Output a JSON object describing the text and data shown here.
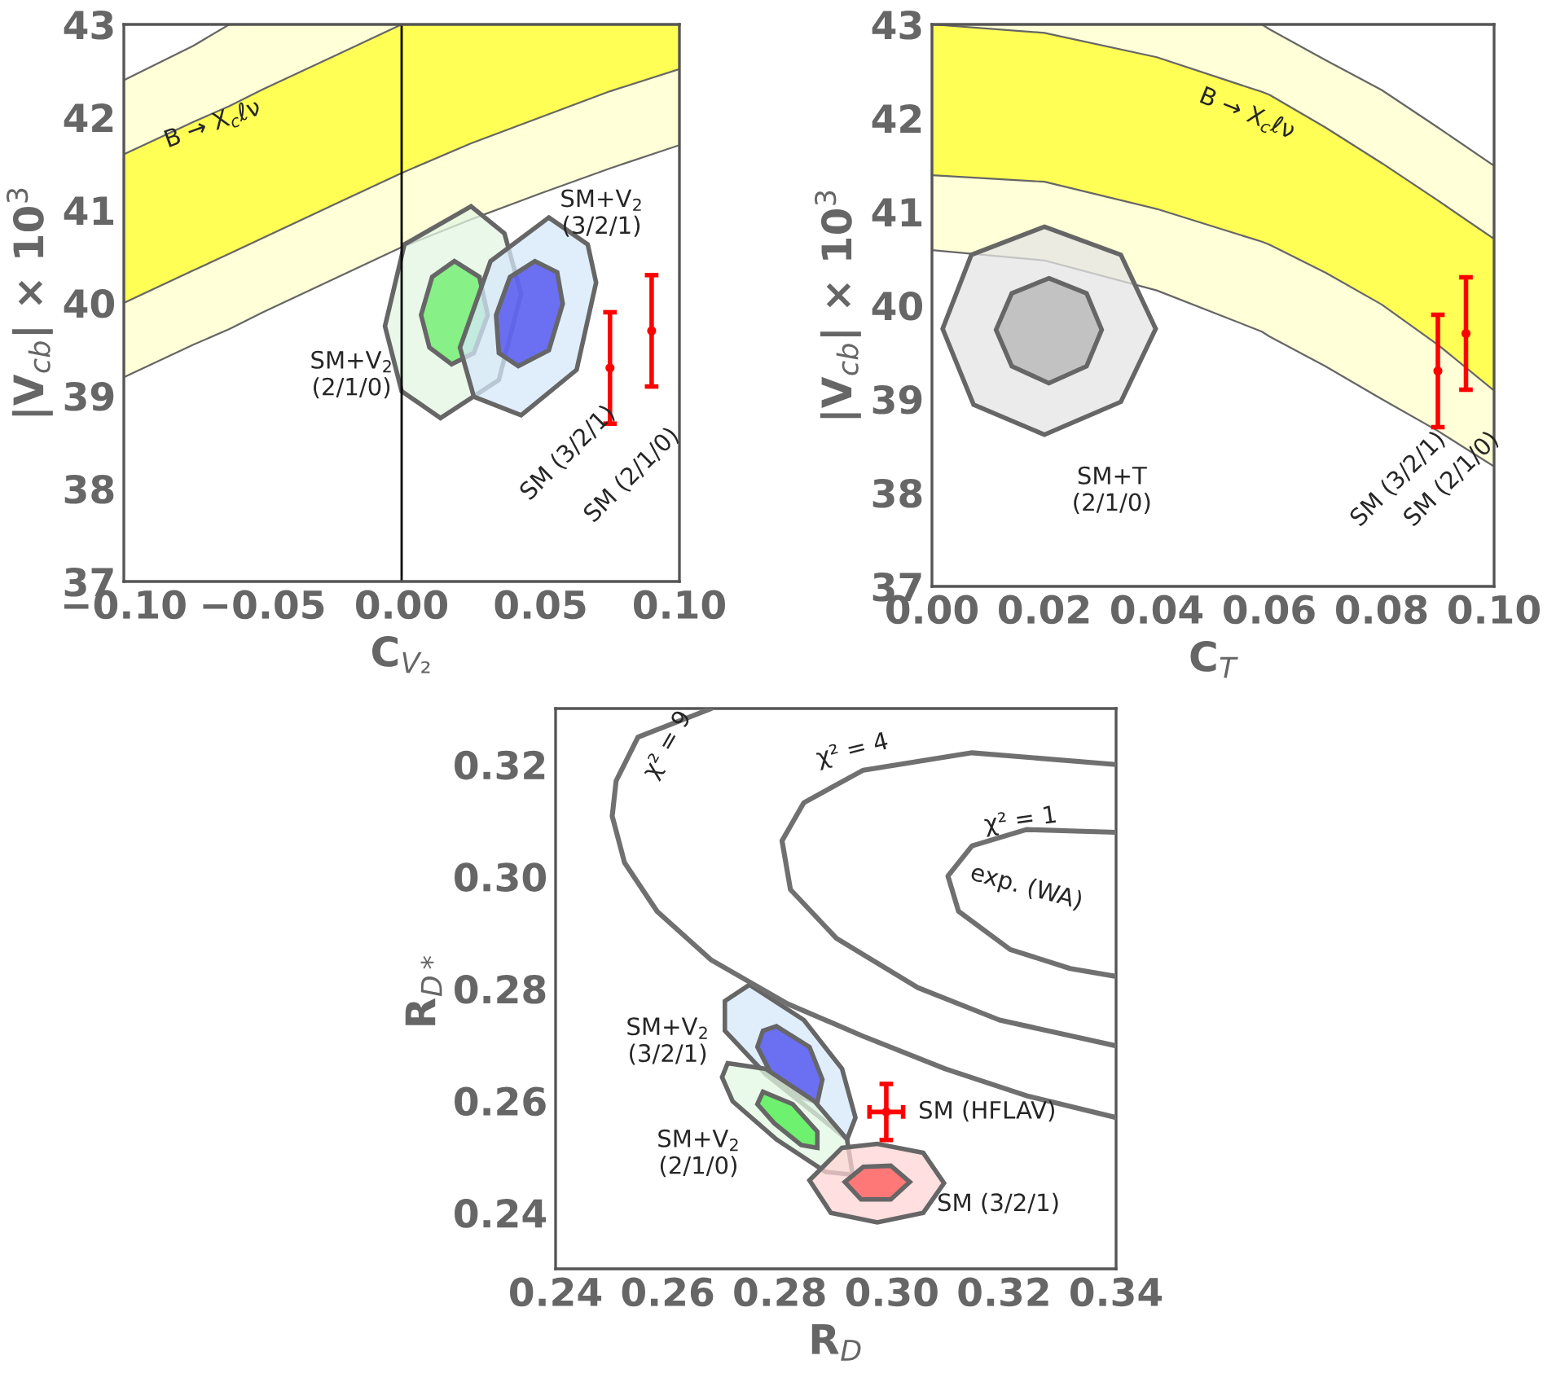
{
  "chart_data": [
    {
      "type": "area",
      "xlabel": "C$_{V₂}$",
      "ylabel": "|V$_{cb}$| × 10$^{3}$",
      "xlim": [
        -0.1,
        0.1
      ],
      "ylim": [
        37,
        43
      ],
      "xticks": [
        {
          "value": -0.1,
          "label": "−0.10"
        },
        {
          "value": -0.05,
          "label": "−0.05"
        },
        {
          "value": 0,
          "label": "0.00"
        },
        {
          "value": 0.05,
          "label": "0.05"
        },
        {
          "value": 0.1,
          "label": "0.10"
        }
      ],
      "yticks": [
        37,
        38,
        39,
        40,
        41,
        42,
        43
      ],
      "grid": false,
      "ref_lines": [
        {
          "axis": "x",
          "value": 0,
          "color": "#000000"
        }
      ],
      "series": [
        {
          "type": "area",
          "color": "#ffffd8",
          "x": [
            -0.1,
            -0.075,
            -0.062,
            -0.05,
            -0.025,
            0,
            0.025,
            0.05,
            0.075,
            0.1
          ],
          "values": [
            null,
            null,
            null,
            null,
            null,
            null,
            null,
            null,
            null,
            null
          ],
          "upper": [
            42.4,
            42.77,
            43,
            43,
            43,
            43,
            43,
            43,
            43,
            43
          ],
          "lower": [
            39.2,
            39.55,
            39.72,
            39.9,
            40.25,
            40.6,
            40.9,
            41.18,
            41.45,
            41.7
          ]
        },
        {
          "type": "area",
          "color": "#ffff55",
          "x": [
            -0.1,
            -0.075,
            -0.062,
            -0.05,
            -0.025,
            0,
            0.025,
            0.05,
            0.075,
            0.1
          ],
          "values": [
            null,
            null,
            null,
            null,
            null,
            null,
            null,
            null,
            null,
            null
          ],
          "upper": [
            41.6,
            41.95,
            42.12,
            42.3,
            42.65,
            43,
            43,
            43,
            43,
            43
          ],
          "lower": [
            40.0,
            40.35,
            40.53,
            40.7,
            41.05,
            41.4,
            41.72,
            42.0,
            42.28,
            42.52
          ]
        },
        {
          "type": "area",
          "color": "#e3f5e3",
          "x": [
            0.025,
            0.037,
            0.043,
            0.035,
            0.014,
            0.0,
            -0.006,
            0.001
          ],
          "values": [
            41.04,
            40.75,
            40.1,
            39.17,
            38.76,
            39.05,
            39.75,
            40.63
          ]
        },
        {
          "type": "area",
          "color": "#66ee66",
          "x": [
            0.019,
            0.028,
            0.031,
            0.026,
            0.018,
            0.01,
            0.007,
            0.011
          ],
          "values": [
            40.45,
            40.28,
            39.87,
            39.46,
            39.34,
            39.52,
            39.87,
            40.28
          ]
        },
        {
          "type": "area",
          "color": "#d6e8fb",
          "x": [
            0.053,
            0.067,
            0.07,
            0.063,
            0.043,
            0.026,
            0.021,
            0.032
          ],
          "values": [
            40.92,
            40.63,
            40.22,
            39.28,
            38.79,
            38.99,
            39.52,
            40.45
          ]
        },
        {
          "type": "area",
          "color": "#4444ee",
          "x": [
            0.048,
            0.056,
            0.058,
            0.053,
            0.042,
            0.035,
            0.034,
            0.039
          ],
          "values": [
            40.45,
            40.33,
            39.99,
            39.49,
            39.32,
            39.46,
            39.87,
            40.28
          ]
        },
        {
          "type": "scatter",
          "color": "#ff0000",
          "marker": "circle",
          "x": [
            0.075,
            0.09
          ],
          "values": [
            39.3,
            39.7
          ],
          "errors": [
            0.6,
            0.6
          ]
        }
      ],
      "annotations": [
        "B → X$_{c}$ℓν",
        "SM+V$_{2}$\n(3/2/1)",
        "SM+V$_{2}$\n(2/1/0)",
        "SM (3/2/1)",
        "SM (2/1/0)"
      ]
    },
    {
      "type": "area",
      "xlabel": "C$_{T}$",
      "ylabel": "|V$_{cb}$| × 10$^{3}$",
      "xlim": [
        0,
        0.1
      ],
      "ylim": [
        37,
        43
      ],
      "xticks": [
        {
          "value": 0,
          "label": "0.00"
        },
        {
          "value": 0.02,
          "label": "0.02"
        },
        {
          "value": 0.04,
          "label": "0.04"
        },
        {
          "value": 0.06,
          "label": "0.06"
        },
        {
          "value": 0.08,
          "label": "0.08"
        },
        {
          "value": 0.1,
          "label": "0.10"
        }
      ],
      "yticks": [
        37,
        38,
        39,
        40,
        41,
        42,
        43
      ],
      "grid": false,
      "series": [
        {
          "type": "area",
          "color": "#ffffd8",
          "x": [
            0,
            0.02,
            0.04,
            0.0587,
            0.06,
            0.07,
            0.08,
            0.09,
            0.1
          ],
          "values": [
            null,
            null,
            null,
            null,
            null,
            null,
            null,
            null,
            null
          ],
          "upper": [
            43,
            43,
            43,
            43,
            42.95,
            42.62,
            42.3,
            41.9,
            41.49
          ],
          "lower": [
            40.59,
            40.48,
            40.16,
            39.72,
            39.67,
            39.35,
            39.0,
            38.66,
            38.28
          ]
        },
        {
          "type": "area",
          "color": "#ffff55",
          "x": [
            0,
            0.02,
            0.04,
            0.0587,
            0.06,
            0.07,
            0.08,
            0.09,
            0.1
          ],
          "values": [
            null,
            null,
            null,
            null,
            null,
            null,
            null,
            null,
            null
          ],
          "upper": [
            43,
            42.91,
            42.65,
            42.28,
            42.25,
            41.9,
            41.52,
            41.12,
            40.71
          ],
          "lower": [
            41.39,
            41.32,
            41.03,
            40.68,
            40.65,
            40.35,
            40.01,
            39.58,
            39.09
          ]
        },
        {
          "type": "area",
          "color": "#e4e4e4",
          "x": [
            0.02,
            0.0336,
            0.0398,
            0.0336,
            0.02,
            0.0074,
            0.0019,
            0.007
          ],
          "values": [
            40.84,
            40.54,
            39.75,
            38.97,
            38.62,
            38.94,
            39.75,
            40.54
          ]
        },
        {
          "type": "area",
          "color": "#b4b4b4",
          "x": [
            0.0208,
            0.0275,
            0.0302,
            0.0275,
            0.0208,
            0.0142,
            0.0114,
            0.0142
          ],
          "values": [
            40.29,
            40.13,
            39.74,
            39.35,
            39.17,
            39.35,
            39.74,
            40.13
          ]
        },
        {
          "type": "scatter",
          "color": "#ff0000",
          "marker": "circle",
          "x": [
            0.09,
            0.095
          ],
          "values": [
            39.3,
            39.7
          ],
          "errors": [
            0.6,
            0.6
          ]
        }
      ],
      "annotations": [
        "B → X$_{c}$ℓν",
        "SM+T\n(2/1/0)",
        "SM (3/2/1)",
        "SM (2/1/0)"
      ]
    },
    {
      "type": "line",
      "xlabel": "R$_{D}$",
      "ylabel": "R$_{D*}$",
      "xlim": [
        0.24,
        0.34
      ],
      "ylim": [
        0.23,
        0.33
      ],
      "xticks": [
        {
          "value": 0.24,
          "label": "0.24"
        },
        {
          "value": 0.26,
          "label": "0.26"
        },
        {
          "value": 0.28,
          "label": "0.28"
        },
        {
          "value": 0.3,
          "label": "0.30"
        },
        {
          "value": 0.32,
          "label": "0.32"
        },
        {
          "value": 0.34,
          "label": "0.34"
        }
      ],
      "yticks": [
        {
          "value": 0.24,
          "label": "0.24"
        },
        {
          "value": 0.26,
          "label": "0.26"
        },
        {
          "value": 0.28,
          "label": "0.28"
        },
        {
          "value": 0.3,
          "label": "0.30"
        },
        {
          "value": 0.32,
          "label": "0.32"
        }
      ],
      "grid": false,
      "series": [
        {
          "color": "#707070",
          "x": [
            0.2678,
            0.2547,
            0.2508,
            0.2501,
            0.2523,
            0.2581,
            0.2678,
            0.2814,
            0.2949,
            0.3095,
            0.324,
            0.34
          ],
          "values": [
            0.33,
            0.3249,
            0.3171,
            0.3108,
            0.3025,
            0.2938,
            0.2851,
            0.2773,
            0.2715,
            0.2657,
            0.2609,
            0.257
          ]
        },
        {
          "color": "#707070",
          "x": [
            0.34,
            0.3143,
            0.2949,
            0.2843,
            0.2804,
            0.2819,
            0.2901,
            0.3046,
            0.3192,
            0.34
          ],
          "values": [
            0.32,
            0.3221,
            0.319,
            0.3132,
            0.3064,
            0.2977,
            0.289,
            0.2802,
            0.2744,
            0.2698
          ]
        },
        {
          "color": "#707070",
          "x": [
            0.34,
            0.324,
            0.3143,
            0.31,
            0.3119,
            0.3211,
            0.3318,
            0.34
          ],
          "values": [
            0.3079,
            0.3084,
            0.3055,
            0.3001,
            0.2938,
            0.287,
            0.2836,
            0.2822
          ]
        },
        {
          "type": "area",
          "color": "#d6e8fb",
          "x": [
            0.2746,
            0.2843,
            0.2911,
            0.2935,
            0.292,
            0.2872,
            0.2775,
            0.2702,
            0.2702
          ],
          "values": [
            0.2807,
            0.2744,
            0.2657,
            0.257,
            0.2531,
            0.257,
            0.2647,
            0.2725,
            0.2778
          ]
        },
        {
          "type": "area",
          "color": "#4444ee",
          "x": [
            0.2794,
            0.2853,
            0.2876,
            0.2867,
            0.2833,
            0.2785,
            0.276,
            0.277
          ],
          "values": [
            0.2733,
            0.2696,
            0.2638,
            0.2597,
            0.2608,
            0.2647,
            0.2696,
            0.2725
          ]
        },
        {
          "type": "area",
          "color": "#e3f8e3",
          "x": [
            0.2707,
            0.2775,
            0.2862,
            0.292,
            0.293,
            0.2882,
            0.2794,
            0.2716,
            0.2697
          ],
          "values": [
            0.2667,
            0.2657,
            0.2599,
            0.2531,
            0.2468,
            0.2473,
            0.2531,
            0.2599,
            0.2642
          ]
        },
        {
          "type": "area",
          "color": "#44ee44",
          "x": [
            0.277,
            0.2823,
            0.2867,
            0.2867,
            0.2838,
            0.279,
            0.276
          ],
          "values": [
            0.2616,
            0.2594,
            0.2545,
            0.2516,
            0.2521,
            0.256,
            0.2594
          ]
        },
        {
          "type": "area",
          "color": "#ffd4d4",
          "x": [
            0.2853,
            0.2911,
            0.2974,
            0.3056,
            0.3093,
            0.3056,
            0.2974,
            0.2891
          ],
          "values": [
            0.2458,
            0.2516,
            0.2523,
            0.2507,
            0.2453,
            0.24,
            0.2383,
            0.24
          ]
        },
        {
          "type": "area",
          "color": "#ff5555",
          "x": [
            0.2916,
            0.2949,
            0.2998,
            0.3032,
            0.2998,
            0.2945
          ],
          "values": [
            0.2455,
            0.2482,
            0.2484,
            0.2455,
            0.2424,
            0.2424
          ]
        },
        {
          "type": "scatter",
          "color": "#ff0000",
          "marker": "circle",
          "x": [
            0.299
          ],
          "values": [
            0.258
          ],
          "errors": [
            0.005
          ],
          "xerrors": [
            0.003
          ]
        }
      ],
      "annotations": [
        "χ² = 9",
        "χ² = 4",
        "χ² = 1",
        "exp. (WA)",
        "SM+V$_{2}$\n(3/2/1)",
        "SM+V$_{2}$\n(2/1/0)",
        "SM (HFLAV)",
        "SM (3/2/1)"
      ]
    }
  ]
}
